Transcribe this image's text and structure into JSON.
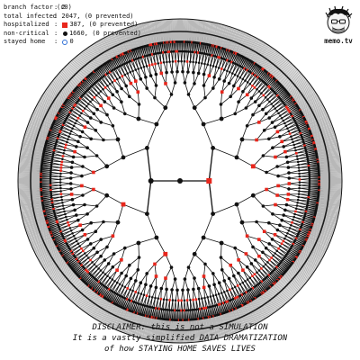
{
  "stats": [
    {
      "label": "branch factor (r0)",
      "value": ": 2",
      "marker": "none"
    },
    {
      "label": "total infected",
      "value": ": 2047, (0 prevented)",
      "marker": "none"
    },
    {
      "label": "hospitalized",
      "value": "387, (0 prevented)",
      "marker": "red-square"
    },
    {
      "label": "non-critical",
      "value": "1660, (0 prevented)",
      "marker": "black-dot"
    },
    {
      "label": "stayed home",
      "value": "0",
      "marker": "blue-ring"
    }
  ],
  "logo": {
    "text": "memo.tv"
  },
  "tree": {
    "branch_factor": 2,
    "generations": 11,
    "node_color": "#111111",
    "hospitalized_color": "#e8261c",
    "stayed_home_color": "#2f6fd6"
  },
  "disclaimer": [
    "DISCLAIMER: this is not a SIMULATION",
    "It is a vastly simplified DATA DRAMATIZATION",
    "of how STAYING HOME SAVES LIVES"
  ]
}
